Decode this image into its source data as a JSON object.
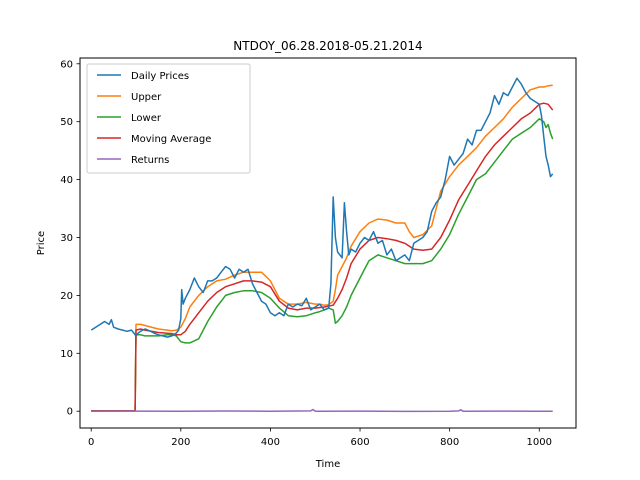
{
  "chart_data": {
    "type": "line",
    "title": "NTDOY_06.28.2018-05.21.2014",
    "xlabel": "Time",
    "ylabel": "Price",
    "xlim": [
      -25,
      1082
    ],
    "ylim": [
      -2.9,
      61
    ],
    "xticks": [
      0,
      200,
      400,
      600,
      800,
      1000
    ],
    "yticks": [
      0,
      10,
      20,
      30,
      40,
      50,
      60
    ],
    "grid": false,
    "legend_position": "top-left",
    "series": [
      {
        "name": "Daily Prices",
        "color": "#1f77b4",
        "x": [
          0,
          10,
          20,
          30,
          40,
          45,
          50,
          60,
          70,
          80,
          90,
          95,
          100,
          105,
          110,
          120,
          130,
          140,
          150,
          160,
          170,
          180,
          190,
          195,
          200,
          202,
          205,
          210,
          220,
          230,
          240,
          250,
          260,
          270,
          280,
          290,
          300,
          310,
          320,
          330,
          340,
          350,
          360,
          370,
          380,
          390,
          400,
          410,
          420,
          430,
          440,
          450,
          460,
          470,
          480,
          490,
          500,
          510,
          520,
          530,
          535,
          540,
          545,
          550,
          560,
          565,
          570,
          575,
          580,
          590,
          600,
          610,
          620,
          630,
          640,
          650,
          660,
          670,
          680,
          690,
          700,
          710,
          720,
          730,
          740,
          750,
          760,
          770,
          780,
          790,
          800,
          810,
          820,
          830,
          840,
          850,
          860,
          870,
          880,
          890,
          900,
          910,
          920,
          930,
          940,
          950,
          960,
          970,
          980,
          990,
          1000,
          1005,
          1010,
          1015,
          1020,
          1025,
          1030
        ],
        "y": [
          14.0,
          14.5,
          15.0,
          15.5,
          15.0,
          15.8,
          14.5,
          14.2,
          14.0,
          13.8,
          14.0,
          13.5,
          13.0,
          13.5,
          13.8,
          14.2,
          13.9,
          13.5,
          13.2,
          13.0,
          12.8,
          13.0,
          13.5,
          14.0,
          16.0,
          21.0,
          18.5,
          19.5,
          21.0,
          23.0,
          21.5,
          20.5,
          22.5,
          22.5,
          23.0,
          24.0,
          25.0,
          24.5,
          23.0,
          24.5,
          24.0,
          24.5,
          22.0,
          20.5,
          19.0,
          18.5,
          17.0,
          16.5,
          17.0,
          16.5,
          18.5,
          18.0,
          18.5,
          18.2,
          19.5,
          17.5,
          18.0,
          18.5,
          17.5,
          17.8,
          22.0,
          37.0,
          30.0,
          27.5,
          26.5,
          36.0,
          31.0,
          27.0,
          28.0,
          27.5,
          29.0,
          30.0,
          29.5,
          31.0,
          29.0,
          29.5,
          27.0,
          28.0,
          26.0,
          26.5,
          27.0,
          26.0,
          29.0,
          29.5,
          30.0,
          31.0,
          34.5,
          36.0,
          37.0,
          40.0,
          44.0,
          42.5,
          43.5,
          44.5,
          47.0,
          46.0,
          48.5,
          48.5,
          50.0,
          51.5,
          54.5,
          53.0,
          55.0,
          54.5,
          56.0,
          57.5,
          56.5,
          55.0,
          54.0,
          53.5,
          53.0,
          51.0,
          47.5,
          44.0,
          42.5,
          40.5,
          41.0
        ]
      },
      {
        "name": "Upper",
        "color": "#ff7f0e",
        "x": [
          0,
          95,
          98,
          100,
          110,
          120,
          150,
          180,
          190,
          200,
          210,
          220,
          240,
          260,
          280,
          300,
          320,
          340,
          360,
          380,
          400,
          420,
          440,
          460,
          480,
          500,
          510,
          520,
          530,
          540,
          545,
          550,
          560,
          570,
          580,
          600,
          620,
          640,
          660,
          680,
          700,
          710,
          720,
          740,
          760,
          780,
          800,
          820,
          840,
          860,
          880,
          900,
          920,
          940,
          960,
          980,
          1000,
          1010,
          1020,
          1030
        ],
        "y": [
          0.05,
          0.05,
          0.05,
          15.0,
          15.0,
          14.8,
          14.2,
          13.9,
          14.0,
          14.5,
          16.0,
          18.0,
          20.0,
          21.5,
          22.5,
          22.8,
          23.5,
          24.0,
          24.0,
          24.0,
          22.5,
          19.5,
          18.5,
          18.5,
          18.8,
          18.5,
          18.5,
          18.3,
          18.4,
          19.0,
          21.0,
          23.5,
          25.0,
          26.5,
          28.5,
          31.0,
          32.5,
          33.2,
          33.0,
          32.5,
          32.5,
          31.0,
          30.0,
          30.5,
          32.0,
          38.0,
          40.5,
          42.5,
          44.0,
          45.5,
          47.5,
          49.0,
          50.5,
          52.5,
          54.0,
          55.5,
          56.0,
          56.0,
          56.2,
          56.3
        ]
      },
      {
        "name": "Lower",
        "color": "#2ca02c",
        "x": [
          0,
          95,
          98,
          100,
          110,
          120,
          150,
          170,
          180,
          190,
          200,
          210,
          220,
          240,
          260,
          280,
          300,
          320,
          340,
          360,
          380,
          400,
          420,
          440,
          460,
          480,
          500,
          510,
          520,
          530,
          540,
          545,
          550,
          560,
          570,
          580,
          600,
          620,
          640,
          660,
          680,
          700,
          720,
          740,
          760,
          780,
          800,
          820,
          840,
          860,
          880,
          900,
          920,
          940,
          960,
          980,
          1000,
          1010,
          1015,
          1020,
          1025,
          1030
        ],
        "y": [
          0.05,
          0.05,
          0.05,
          13.2,
          13.2,
          13.0,
          13.0,
          13.2,
          13.2,
          13.0,
          12.0,
          11.8,
          11.8,
          12.5,
          15.5,
          18.0,
          20.0,
          20.5,
          20.8,
          20.8,
          20.5,
          19.5,
          17.8,
          16.5,
          16.3,
          16.5,
          17.0,
          17.2,
          17.5,
          17.8,
          17.5,
          15.2,
          15.5,
          16.5,
          18.0,
          20.0,
          23.0,
          26.0,
          27.0,
          26.5,
          26.0,
          25.5,
          25.5,
          25.5,
          26.0,
          28.0,
          30.5,
          34.0,
          37.0,
          40.0,
          41.0,
          43.0,
          45.0,
          47.0,
          48.0,
          49.0,
          50.5,
          50.0,
          49.0,
          49.5,
          48.0,
          47.0
        ]
      },
      {
        "name": "Moving Average",
        "color": "#d62728",
        "x": [
          0,
          95,
          98,
          100,
          110,
          120,
          150,
          180,
          190,
          200,
          210,
          220,
          240,
          260,
          280,
          300,
          320,
          340,
          360,
          380,
          400,
          420,
          440,
          460,
          480,
          500,
          520,
          540,
          550,
          560,
          570,
          580,
          600,
          620,
          640,
          660,
          680,
          700,
          720,
          740,
          760,
          780,
          800,
          820,
          840,
          860,
          880,
          900,
          920,
          940,
          960,
          980,
          1000,
          1010,
          1020,
          1030
        ],
        "y": [
          0.05,
          0.05,
          0.05,
          14.0,
          14.2,
          14.0,
          13.6,
          13.4,
          13.2,
          13.2,
          13.8,
          15.0,
          17.0,
          19.0,
          20.5,
          21.5,
          22.0,
          22.5,
          22.5,
          22.3,
          21.5,
          19.0,
          17.8,
          17.5,
          17.8,
          17.8,
          18.0,
          18.3,
          19.5,
          21.0,
          23.0,
          25.5,
          28.0,
          29.5,
          30.0,
          29.8,
          29.5,
          29.0,
          28.0,
          27.8,
          28.0,
          30.0,
          33.0,
          36.5,
          39.0,
          41.5,
          44.0,
          46.0,
          47.5,
          49.0,
          50.5,
          51.5,
          53.0,
          53.2,
          53.0,
          52.0
        ]
      },
      {
        "name": "Returns",
        "color": "#9467bd",
        "x": [
          0,
          100,
          200,
          300,
          400,
          490,
          495,
          500,
          600,
          700,
          800,
          820,
          825,
          830,
          900,
          1000,
          1030
        ],
        "y": [
          0.0,
          0.02,
          -0.02,
          0.03,
          0.0,
          0.05,
          0.3,
          0.0,
          0.02,
          -0.03,
          0.0,
          0.05,
          0.25,
          0.0,
          0.02,
          0.0,
          0.0
        ]
      }
    ]
  }
}
